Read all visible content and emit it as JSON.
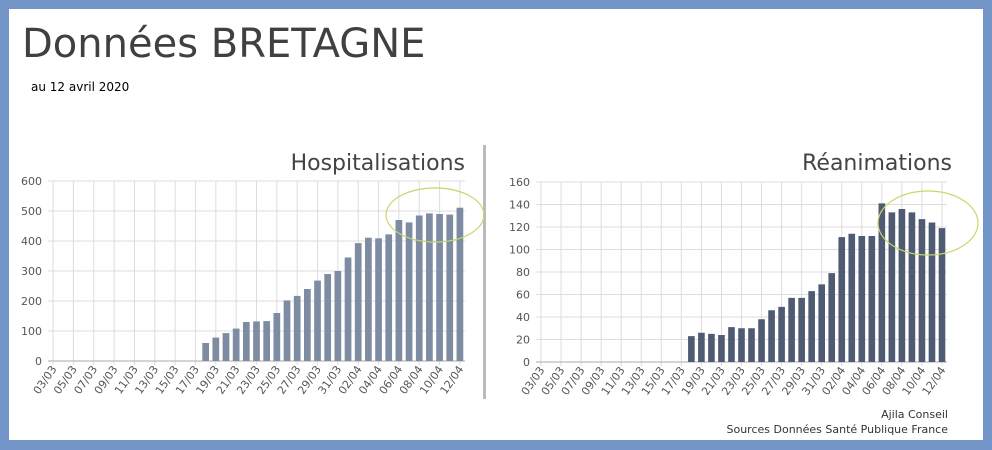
{
  "title": "Données BRETAGNE",
  "subtitle": "au 12 avril 2020",
  "credit": {
    "line1": "Ajila Conseil",
    "line2": "Sources Données Santé Publique France"
  },
  "chart_data": [
    {
      "type": "bar",
      "title": "Hospitalisations",
      "ylim": [
        0,
        600
      ],
      "yticks": [
        0,
        100,
        200,
        300,
        400,
        500,
        600
      ],
      "grid": true,
      "color": "#7d8ca2",
      "highlight_color": "#c8d66a",
      "x_tick_labels": [
        "03/03",
        "05/03",
        "07/03",
        "09/03",
        "11/03",
        "13/03",
        "15/03",
        "17/03",
        "19/03",
        "21/03",
        "23/03",
        "25/03",
        "27/03",
        "29/03",
        "31/03",
        "02/04",
        "04/04",
        "06/04",
        "08/04",
        "10/04",
        "12/04"
      ],
      "categories": [
        "03/03",
        "04/03",
        "05/03",
        "06/03",
        "07/03",
        "08/03",
        "09/03",
        "10/03",
        "11/03",
        "12/03",
        "13/03",
        "14/03",
        "15/03",
        "16/03",
        "17/03",
        "18/03",
        "19/03",
        "20/03",
        "21/03",
        "22/03",
        "23/03",
        "24/03",
        "25/03",
        "26/03",
        "27/03",
        "28/03",
        "29/03",
        "30/03",
        "31/03",
        "01/04",
        "02/04",
        "03/04",
        "04/04",
        "05/04",
        "06/04",
        "07/04",
        "08/04",
        "09/04",
        "10/04",
        "11/04",
        "12/04"
      ],
      "values": [
        0,
        0,
        0,
        0,
        0,
        0,
        0,
        0,
        0,
        0,
        0,
        0,
        0,
        0,
        0,
        60,
        78,
        93,
        108,
        130,
        132,
        133,
        160,
        202,
        217,
        240,
        268,
        290,
        300,
        345,
        393,
        411,
        409,
        422,
        470,
        462,
        485,
        492,
        490,
        488,
        511
      ]
    },
    {
      "type": "bar",
      "title": "Réanimations",
      "ylim": [
        0,
        160
      ],
      "yticks": [
        0,
        20,
        40,
        60,
        80,
        100,
        120,
        140,
        160
      ],
      "grid": true,
      "color": "#4e5b73",
      "highlight_color": "#c8d66a",
      "x_tick_labels": [
        "03/03",
        "05/03",
        "07/03",
        "09/03",
        "11/03",
        "13/03",
        "15/03",
        "17/03",
        "19/03",
        "21/03",
        "23/03",
        "25/03",
        "27/03",
        "29/03",
        "31/03",
        "02/04",
        "04/04",
        "06/04",
        "08/04",
        "10/04",
        "12/04"
      ],
      "categories": [
        "03/03",
        "04/03",
        "05/03",
        "06/03",
        "07/03",
        "08/03",
        "09/03",
        "10/03",
        "11/03",
        "12/03",
        "13/03",
        "14/03",
        "15/03",
        "16/03",
        "17/03",
        "18/03",
        "19/03",
        "20/03",
        "21/03",
        "22/03",
        "23/03",
        "24/03",
        "25/03",
        "26/03",
        "27/03",
        "28/03",
        "29/03",
        "30/03",
        "31/03",
        "01/04",
        "02/04",
        "03/04",
        "04/04",
        "05/04",
        "06/04",
        "07/04",
        "08/04",
        "09/04",
        "10/04",
        "11/04",
        "12/04"
      ],
      "values": [
        0,
        0,
        0,
        0,
        0,
        0,
        0,
        0,
        0,
        0,
        0,
        0,
        0,
        0,
        0,
        23,
        26,
        25,
        24,
        31,
        30,
        30,
        38,
        46,
        49,
        57,
        57,
        63,
        69,
        79,
        111,
        114,
        112,
        112,
        141,
        133,
        136,
        133,
        127,
        124,
        119
      ]
    }
  ]
}
